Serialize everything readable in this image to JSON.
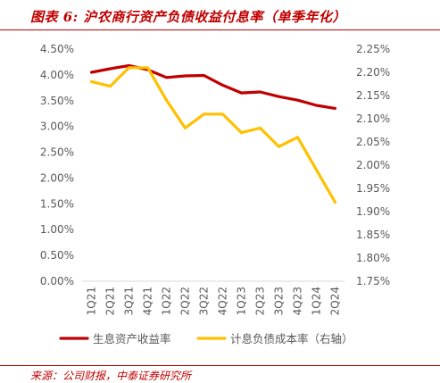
{
  "header": {
    "title": "图表 6:  沪农商行资产负债收益付息率（单季年化）"
  },
  "footer": {
    "source": "来源：公司财报，中泰证券研究所"
  },
  "chart_data": {
    "type": "line",
    "x": [
      "1Q21",
      "2Q21",
      "3Q21",
      "4Q21",
      "1Q22",
      "2Q22",
      "3Q22",
      "4Q22",
      "1Q23",
      "2Q23",
      "3Q23",
      "4Q23",
      "1Q24",
      "2Q24"
    ],
    "left_axis": {
      "ylim": [
        0,
        4.5
      ],
      "ticks": [
        "0.00%",
        "0.50%",
        "1.00%",
        "1.50%",
        "2.00%",
        "2.50%",
        "3.00%",
        "3.50%",
        "4.00%",
        "4.50%"
      ]
    },
    "right_axis": {
      "ylim": [
        1.75,
        2.25
      ],
      "ticks": [
        "1.75%",
        "1.80%",
        "1.85%",
        "1.90%",
        "1.95%",
        "2.00%",
        "2.05%",
        "2.10%",
        "2.15%",
        "2.20%",
        "2.25%"
      ]
    },
    "series": [
      {
        "name": "生息资产收益率",
        "axis": "left",
        "color": "#c00000",
        "values": [
          4.05,
          4.12,
          4.18,
          4.1,
          3.95,
          3.98,
          3.99,
          3.8,
          3.65,
          3.67,
          3.58,
          3.51,
          3.41,
          3.35
        ]
      },
      {
        "name": "计息负债成本率（右轴）",
        "axis": "right",
        "color": "#ffc000",
        "values": [
          2.18,
          2.17,
          2.21,
          2.21,
          2.14,
          2.08,
          2.11,
          2.11,
          2.07,
          2.08,
          2.04,
          2.06,
          1.99,
          1.92
        ]
      }
    ],
    "legend": "bottom",
    "grid": false
  }
}
